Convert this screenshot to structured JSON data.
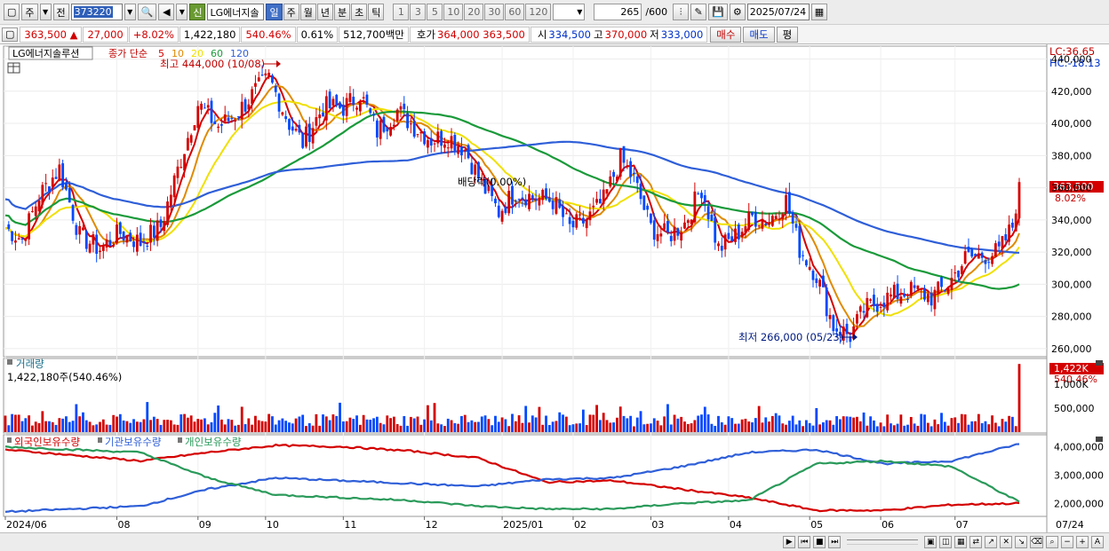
{
  "toolbar": {
    "market": "주",
    "prev": "전",
    "code": "373220",
    "stock_name": "LG에너지솔",
    "credit_badge": "신",
    "periods": [
      {
        "label": "일",
        "active": true
      },
      {
        "label": "주",
        "active": false
      },
      {
        "label": "월",
        "active": false
      },
      {
        "label": "년",
        "active": false
      },
      {
        "label": "분",
        "active": false
      },
      {
        "label": "초",
        "active": false
      },
      {
        "label": "틱",
        "active": false
      }
    ],
    "intervals": [
      "1",
      "3",
      "5",
      "10",
      "20",
      "30",
      "60",
      "120"
    ],
    "bar_count": "265",
    "bar_total": "/600",
    "date": "2025/07/24"
  },
  "quote": {
    "price": "363,500",
    "change_arrow": "▲",
    "change": "27,000",
    "change_pct": "+8.02%",
    "volume": "1,422,180",
    "volume_ratio": "540.46%",
    "turnover_ratio": "0.61%",
    "amount": "512,700백만",
    "bid_label": "호가",
    "bid": "364,000",
    "ask": "363,500",
    "open_label": "시",
    "open": "334,500",
    "high_label": "고",
    "high": "370,000",
    "low_label": "저",
    "low": "333,000",
    "buy_label": "매수",
    "sell_label": "매도",
    "eval_label": "평"
  },
  "price_panel": {
    "series_name": "LG에너지솔루션",
    "ma_label": "종가 단순",
    "ma_periods": [
      "5",
      "10",
      "20",
      "60",
      "120"
    ],
    "ma_colors": [
      "#d40000",
      "#e08a00",
      "#f0e000",
      "#1a9a3a",
      "#2f5fd8"
    ],
    "high_annotation": "최고 444,000 (10/08)",
    "low_annotation": "최저 266,000 (05/23)",
    "dividend_annotation": "배당락(0.00%)",
    "lc": "LC:36.65",
    "hc": "HC:-18.13",
    "last_price_tag": "363,500",
    "last_pct_tag": "8.02%",
    "y_ticks": [
      "440,000",
      "420,000",
      "400,000",
      "380,000",
      "360,000",
      "340,000",
      "320,000",
      "300,000",
      "280,000",
      "260,000"
    ]
  },
  "volume_panel": {
    "title": "거래량",
    "value": "1,422,180주(540.46%)",
    "tag_value": "1,422K",
    "tag_pct": "540.46%",
    "y_ticks": [
      "1,000K",
      "500,000"
    ]
  },
  "holding_panel": {
    "legend": [
      {
        "label": "외국인보유수량",
        "color": "#d40000"
      },
      {
        "label": "기관보유수량",
        "color": "#2f5fd8"
      },
      {
        "label": "개인보유수량",
        "color": "#2a9a5a"
      }
    ],
    "y_ticks": [
      "4,000,000",
      "3,000,000",
      "2,000,000"
    ]
  },
  "x_axis": {
    "labels": [
      "2024/06",
      "08",
      "09",
      "10",
      "11",
      "12",
      "2025/01",
      "02",
      "03",
      "04",
      "05",
      "06",
      "07"
    ],
    "right_label": "07/24"
  },
  "chart_data": {
    "type": "candlestick",
    "title": "LG에너지솔루션",
    "ylim": [
      255000,
      448000
    ],
    "price_anchors": [
      {
        "x": 0,
        "y": 335000
      },
      {
        "x": 5,
        "y": 328000
      },
      {
        "x": 10,
        "y": 355000
      },
      {
        "x": 16,
        "y": 372000
      },
      {
        "x": 22,
        "y": 330000
      },
      {
        "x": 28,
        "y": 322000
      },
      {
        "x": 34,
        "y": 332000
      },
      {
        "x": 40,
        "y": 326000
      },
      {
        "x": 46,
        "y": 336000
      },
      {
        "x": 52,
        "y": 378000
      },
      {
        "x": 57,
        "y": 412000
      },
      {
        "x": 63,
        "y": 398000
      },
      {
        "x": 68,
        "y": 405000
      },
      {
        "x": 74,
        "y": 420000
      },
      {
        "x": 78,
        "y": 428000
      },
      {
        "x": 84,
        "y": 400000
      },
      {
        "x": 88,
        "y": 388000
      },
      {
        "x": 94,
        "y": 410000
      },
      {
        "x": 100,
        "y": 410000
      },
      {
        "x": 105,
        "y": 418000
      },
      {
        "x": 110,
        "y": 395000
      },
      {
        "x": 116,
        "y": 408000
      },
      {
        "x": 121,
        "y": 398000
      },
      {
        "x": 126,
        "y": 390000
      },
      {
        "x": 131,
        "y": 392000
      },
      {
        "x": 136,
        "y": 384000
      },
      {
        "x": 141,
        "y": 362000
      },
      {
        "x": 146,
        "y": 345000
      },
      {
        "x": 151,
        "y": 358000
      },
      {
        "x": 156,
        "y": 354000
      },
      {
        "x": 162,
        "y": 352000
      },
      {
        "x": 167,
        "y": 335000
      },
      {
        "x": 172,
        "y": 340000
      },
      {
        "x": 177,
        "y": 352000
      },
      {
        "x": 182,
        "y": 378000
      },
      {
        "x": 186,
        "y": 365000
      },
      {
        "x": 191,
        "y": 335000
      },
      {
        "x": 196,
        "y": 330000
      },
      {
        "x": 201,
        "y": 338000
      },
      {
        "x": 206,
        "y": 360000
      },
      {
        "x": 211,
        "y": 322000
      },
      {
        "x": 216,
        "y": 330000
      },
      {
        "x": 221,
        "y": 342000
      },
      {
        "x": 226,
        "y": 340000
      },
      {
        "x": 231,
        "y": 352000
      },
      {
        "x": 235,
        "y": 322000
      },
      {
        "x": 240,
        "y": 306000
      },
      {
        "x": 245,
        "y": 274000
      },
      {
        "x": 250,
        "y": 268000
      },
      {
        "x": 254,
        "y": 284000
      },
      {
        "x": 259,
        "y": 290000
      },
      {
        "x": 264,
        "y": 294000
      },
      {
        "x": 269,
        "y": 296000
      },
      {
        "x": 274,
        "y": 292000
      },
      {
        "x": 279,
        "y": 300000
      },
      {
        "x": 284,
        "y": 316000
      },
      {
        "x": 289,
        "y": 318000
      },
      {
        "x": 294,
        "y": 320000
      },
      {
        "x": 298,
        "y": 336000
      },
      {
        "x": 300,
        "y": 363500
      }
    ],
    "bars": 301,
    "series": [
      {
        "name": "5"
      },
      {
        "name": "10"
      },
      {
        "name": "20"
      },
      {
        "name": "60"
      },
      {
        "name": "120"
      }
    ],
    "annotations": [
      {
        "label": "최고 444,000 (10/08)",
        "value": 444000
      },
      {
        "label": "최저 266,000 (05/23)",
        "value": 266000
      }
    ],
    "holdings": {
      "ylim": [
        1600000,
        4300000
      ],
      "x": [
        0,
        20,
        40,
        60,
        80,
        100,
        120,
        140,
        160,
        180,
        200,
        220,
        240,
        260,
        280,
        300
      ],
      "foreign": [
        3900000,
        3700000,
        3500000,
        3800000,
        4050000,
        4000000,
        3850000,
        3600000,
        2750000,
        2800000,
        2500000,
        2200000,
        1750000,
        1750000,
        1950000,
        2000000
      ],
      "institution": [
        1700000,
        1800000,
        1900000,
        2500000,
        2900000,
        2800000,
        2700000,
        2600000,
        2850000,
        2900000,
        3300000,
        3800000,
        3900000,
        3400000,
        3500000,
        4100000
      ],
      "individual": [
        4000000,
        3900000,
        3800000,
        2900000,
        2300000,
        2200000,
        2100000,
        1900000,
        1800000,
        1800000,
        2000000,
        2100000,
        3400000,
        3500000,
        3300000,
        2050000
      ]
    }
  }
}
